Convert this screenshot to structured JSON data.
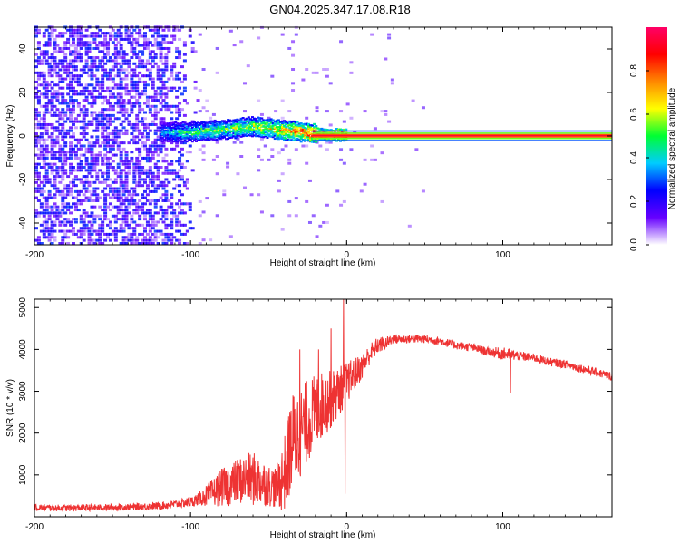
{
  "title": "GN04.2025.347.17.08.R18",
  "colors": {
    "snr_line": "#ee3333",
    "axis": "#000000",
    "background": "#ffffff"
  },
  "chart_data": [
    {
      "type": "heatmap",
      "xlabel": "Height of straight line (km)",
      "ylabel": "Frequency (Hz)",
      "xlim": [
        -200,
        170
      ],
      "ylim": [
        -50,
        50
      ],
      "x_ticks": [
        -200,
        -100,
        0,
        100
      ],
      "y_ticks": [
        -40,
        -20,
        0,
        20,
        40
      ],
      "x_tick_labels": [
        "-200",
        "-100",
        "0",
        "100"
      ],
      "y_tick_labels": [
        "-40",
        "-20",
        "0",
        "20",
        "40"
      ],
      "colorbar": {
        "label": "Normalized spectral amplitude",
        "range": [
          0,
          1
        ],
        "ticks": [
          0,
          0.2,
          0.4,
          0.6,
          0.8
        ],
        "tick_labels": [
          "0.0",
          "0.2",
          "0.4",
          "0.6",
          "0.8"
        ],
        "colormap": [
          "#ffffff",
          "#6600ff",
          "#0000ff",
          "#00ccff",
          "#00ff33",
          "#ffff00",
          "#ff8800",
          "#ff0000",
          "#ff0066"
        ]
      },
      "noise_region": {
        "x_range": [
          -200,
          -95
        ],
        "mean_amplitude": 0.15,
        "max_amplitude": 0.3
      },
      "sparse_noise_region": {
        "x_range": [
          -95,
          60
        ],
        "mean_amplitude": 0.03
      },
      "signal_ridge": [
        {
          "x": -120,
          "freq": 1.5,
          "amplitude": 0.35
        },
        {
          "x": -100,
          "freq": 1.5,
          "amplitude": 0.5
        },
        {
          "x": -80,
          "freq": 2.5,
          "amplitude": 0.55
        },
        {
          "x": -60,
          "freq": 4,
          "amplitude": 0.6
        },
        {
          "x": -45,
          "freq": 2.5,
          "amplitude": 0.7
        },
        {
          "x": -30,
          "freq": 1.5,
          "amplitude": 0.8
        },
        {
          "x": -20,
          "freq": 0.5,
          "amplitude": 0.9
        },
        {
          "x": 0,
          "freq": 0,
          "amplitude": 0.95
        },
        {
          "x": 170,
          "freq": 0,
          "amplitude": 0.95
        }
      ],
      "grid": false
    },
    {
      "type": "line",
      "xlabel": "Height of straight line (km)",
      "ylabel": "SNR (10 * v/v)",
      "xlim": [
        -200,
        170
      ],
      "ylim": [
        0,
        5200
      ],
      "x_ticks": [
        -200,
        -100,
        0,
        100
      ],
      "y_ticks": [
        1000,
        2000,
        3000,
        4000,
        5000
      ],
      "x_tick_labels": [
        "-200",
        "-100",
        "0",
        "100"
      ],
      "y_tick_labels": [
        "1000",
        "2000",
        "3000",
        "4000",
        "5000"
      ],
      "grid": false,
      "series": [
        {
          "x": [
            -200,
            -180,
            -160,
            -140,
            -120,
            -110,
            -100,
            -95,
            -90,
            -85,
            -80,
            -75,
            -70,
            -65,
            -60,
            -55,
            -50,
            -45,
            -40,
            -35,
            -30,
            -25,
            -20,
            -15,
            -10,
            -5,
            0,
            5,
            10,
            15,
            20,
            25,
            30,
            40,
            50,
            60,
            70,
            80,
            90,
            100,
            110,
            120,
            130,
            140,
            150,
            160,
            170
          ],
          "y": [
            220,
            210,
            220,
            230,
            260,
            300,
            350,
            420,
            500,
            600,
            700,
            750,
            850,
            900,
            900,
            850,
            750,
            700,
            1000,
            1800,
            2000,
            2300,
            2500,
            2700,
            2800,
            3000,
            3200,
            3400,
            3600,
            3900,
            4100,
            4150,
            4250,
            4250,
            4250,
            4200,
            4100,
            4050,
            3950,
            3900,
            3850,
            3800,
            3700,
            3650,
            3550,
            3450,
            3350
          ],
          "noise_amplitude": [
            80,
            80,
            80,
            80,
            90,
            100,
            120,
            150,
            250,
            350,
            450,
            500,
            550,
            600,
            650,
            600,
            500,
            500,
            900,
            1200,
            1100,
            1000,
            900,
            800,
            700,
            600,
            500,
            400,
            300,
            250,
            200,
            150,
            120,
            100,
            100,
            100,
            100,
            100,
            100,
            150,
            120,
            100,
            100,
            100,
            100,
            100,
            100
          ],
          "spikes": [
            {
              "x": -30,
              "y": 4000
            },
            {
              "x": -18,
              "y": 4000
            },
            {
              "x": -10,
              "y": 4500
            },
            {
              "x": -2,
              "y": 5200
            },
            {
              "x": -1,
              "y": 550
            },
            {
              "x": 105,
              "y": 2950
            }
          ]
        }
      ]
    }
  ]
}
